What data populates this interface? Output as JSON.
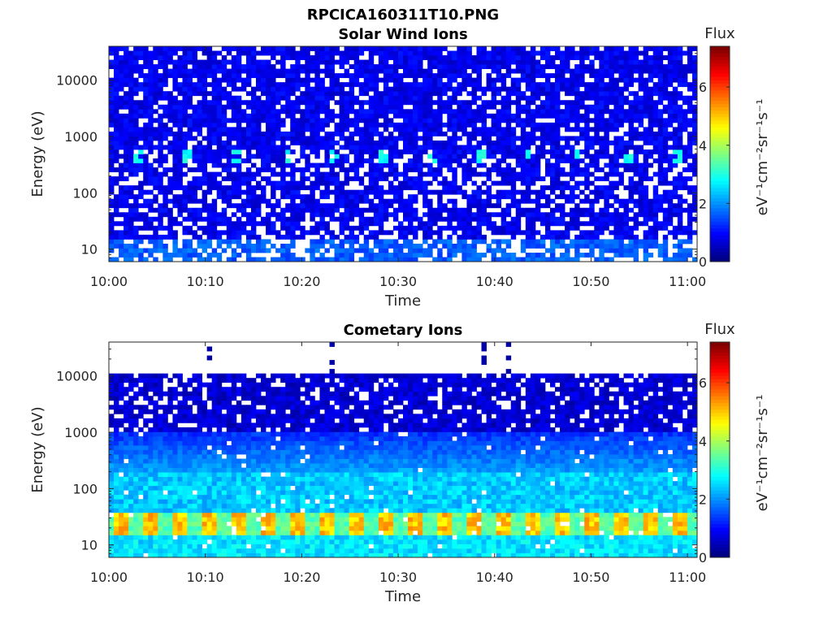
{
  "figure_title": "RPCICA160311T10.PNG",
  "chart_data": [
    {
      "type": "heatmap",
      "title": "Solar Wind Ions",
      "xlabel": "Time",
      "ylabel": "Energy (eV)",
      "x_ticks": [
        "10:00",
        "10:10",
        "10:20",
        "10:30",
        "10:40",
        "10:50",
        "11:00"
      ],
      "x_range": [
        "10:00",
        "11:01"
      ],
      "y_scale": "log",
      "y_ticks": [
        "10",
        "100",
        "1000",
        "10000"
      ],
      "y_range": [
        6,
        40000
      ],
      "colorbar": {
        "title": "Flux",
        "label": "eV⁻¹cm⁻²sr⁻¹s⁻¹",
        "ticks": [
          "0",
          "2",
          "4",
          "6"
        ],
        "range": [
          0,
          7.4
        ]
      },
      "colormap": "jet",
      "profile": "solar",
      "grid": false
    },
    {
      "type": "heatmap",
      "title": "Cometary Ions",
      "xlabel": "Time",
      "ylabel": "Energy (eV)",
      "x_ticks": [
        "10:00",
        "10:10",
        "10:20",
        "10:30",
        "10:40",
        "10:50",
        "11:00"
      ],
      "x_range": [
        "10:00",
        "11:01"
      ],
      "y_scale": "log",
      "y_ticks": [
        "10",
        "100",
        "1000",
        "10000"
      ],
      "y_range": [
        6,
        40000
      ],
      "colorbar": {
        "title": "Flux",
        "label": "eV⁻¹cm⁻²sr⁻¹s⁻¹",
        "ticks": [
          "0",
          "2",
          "4",
          "6"
        ],
        "range": [
          0,
          7.4
        ]
      },
      "colormap": "jet",
      "profile": "cometary",
      "grid": false
    }
  ]
}
